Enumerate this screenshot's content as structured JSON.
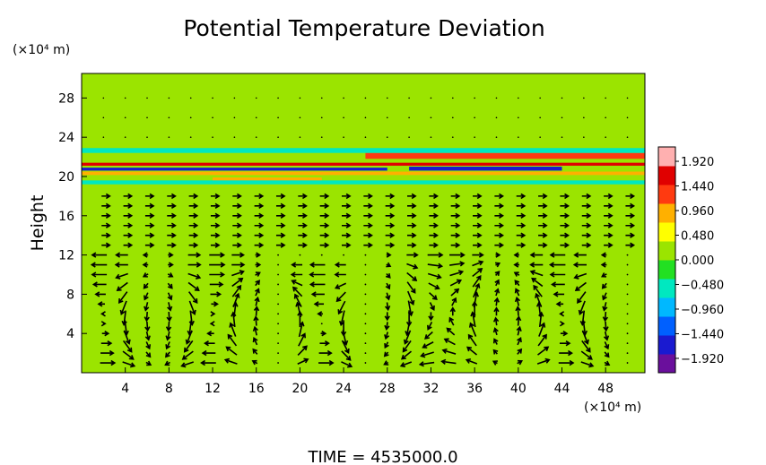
{
  "chart_data": {
    "type": "heatmap",
    "title": "Potential Temperature Deviation",
    "ylabel": "Height",
    "x_unit_label": "(×10⁴ m)",
    "y_unit_label": "(×10⁴ m)",
    "footer": "TIME  =  4535000.0",
    "xlim": [
      0,
      51.6
    ],
    "ylim": [
      0,
      30.5
    ],
    "x_ticks": [
      4,
      8,
      12,
      16,
      20,
      24,
      28,
      32,
      36,
      40,
      44,
      48
    ],
    "y_ticks": [
      4,
      8,
      12,
      16,
      20,
      24,
      28
    ],
    "colorbar": {
      "range": [
        -2.2,
        2.2
      ],
      "ticks": [
        1.92,
        1.44,
        0.96,
        0.48,
        0.0,
        -0.48,
        -0.96,
        -1.44,
        -1.92
      ],
      "tick_labels": [
        "1.920",
        "1.440",
        "0.960",
        "0.480",
        "0.000",
        "−0.480",
        "−0.960",
        "−1.440",
        "−1.920"
      ],
      "colors": [
        "#6a0f9c",
        "#1a1ad0",
        "#0060ff",
        "#00b8ff",
        "#00e8c0",
        "#22e022",
        "#9be400",
        "#ffff00",
        "#ffb000",
        "#ff3a10",
        "#e00000",
        "#ffb0b0"
      ]
    },
    "background_value": 0.0,
    "bands": [
      {
        "x": [
          0,
          51.6
        ],
        "y": [
          21.1,
          21.4
        ],
        "value": 1.6
      },
      {
        "x": [
          0,
          28
        ],
        "y": [
          20.6,
          20.9
        ],
        "value": -1.5
      },
      {
        "x": [
          0,
          51.6
        ],
        "y": [
          20.15,
          20.5
        ],
        "value": 1.0
      },
      {
        "x": [
          12,
          22
        ],
        "y": [
          19.4,
          19.9
        ],
        "value": 0.9
      },
      {
        "x": [
          26,
          51.6
        ],
        "y": [
          21.8,
          22.4
        ],
        "value": 1.3
      },
      {
        "x": [
          30,
          44
        ],
        "y": [
          20.6,
          21.0
        ],
        "value": -1.7
      },
      {
        "x": [
          0,
          51.6
        ],
        "y": [
          22.4,
          22.9
        ],
        "value": -0.6
      },
      {
        "x": [
          0,
          51.6
        ],
        "y": [
          19.2,
          19.6
        ],
        "value": -0.6
      },
      {
        "x": [
          0,
          51.6
        ],
        "y": [
          18.3,
          18.8
        ],
        "value": 0.3
      },
      {
        "x": [
          0,
          51.6
        ],
        "y": [
          23.3,
          23.7
        ],
        "value": 0.25
      }
    ],
    "vector_field": {
      "x_spacing": 2.0,
      "y_spacing": 1.0,
      "cells": [
        {
          "x_center": 2,
          "z_top": 11,
          "width": 10,
          "sign": 1
        },
        {
          "x_center": 12,
          "z_top": 11,
          "width": 10,
          "sign": -1
        },
        {
          "x_center": 22,
          "z_top": 10,
          "width": 8,
          "sign": 1
        },
        {
          "x_center": 33,
          "z_top": 12,
          "width": 12,
          "sign": -1
        },
        {
          "x_center": 44,
          "z_top": 11,
          "width": 10,
          "sign": 1
        }
      ]
    }
  }
}
